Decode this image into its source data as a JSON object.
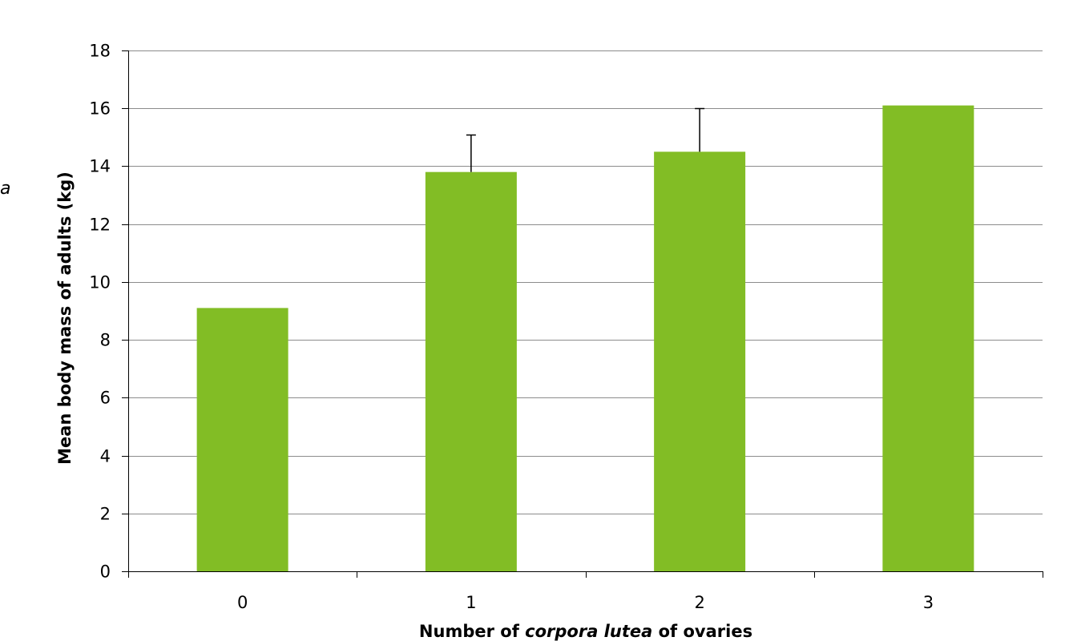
{
  "side_label": "a",
  "chart_data": {
    "type": "bar",
    "categories": [
      "0",
      "1",
      "2",
      "3"
    ],
    "values": [
      9.1,
      13.8,
      14.5,
      16.1
    ],
    "error_bars": [
      null,
      1.3,
      1.5,
      null
    ],
    "title": "",
    "xlabel": {
      "parts": [
        {
          "text": "Number of ",
          "italic": false
        },
        {
          "text": "corpora lutea",
          "italic": true
        },
        {
          "text": " of ovaries",
          "italic": false
        }
      ]
    },
    "ylabel": "Mean body mass of adults (kg)",
    "ylim": [
      0,
      18
    ],
    "yticks": [
      "0",
      "2",
      "4",
      "6",
      "8",
      "10",
      "12",
      "14",
      "16",
      "18"
    ],
    "grid": true,
    "bar_color": "#82bd25",
    "grid_color": "#8c8c8c"
  }
}
